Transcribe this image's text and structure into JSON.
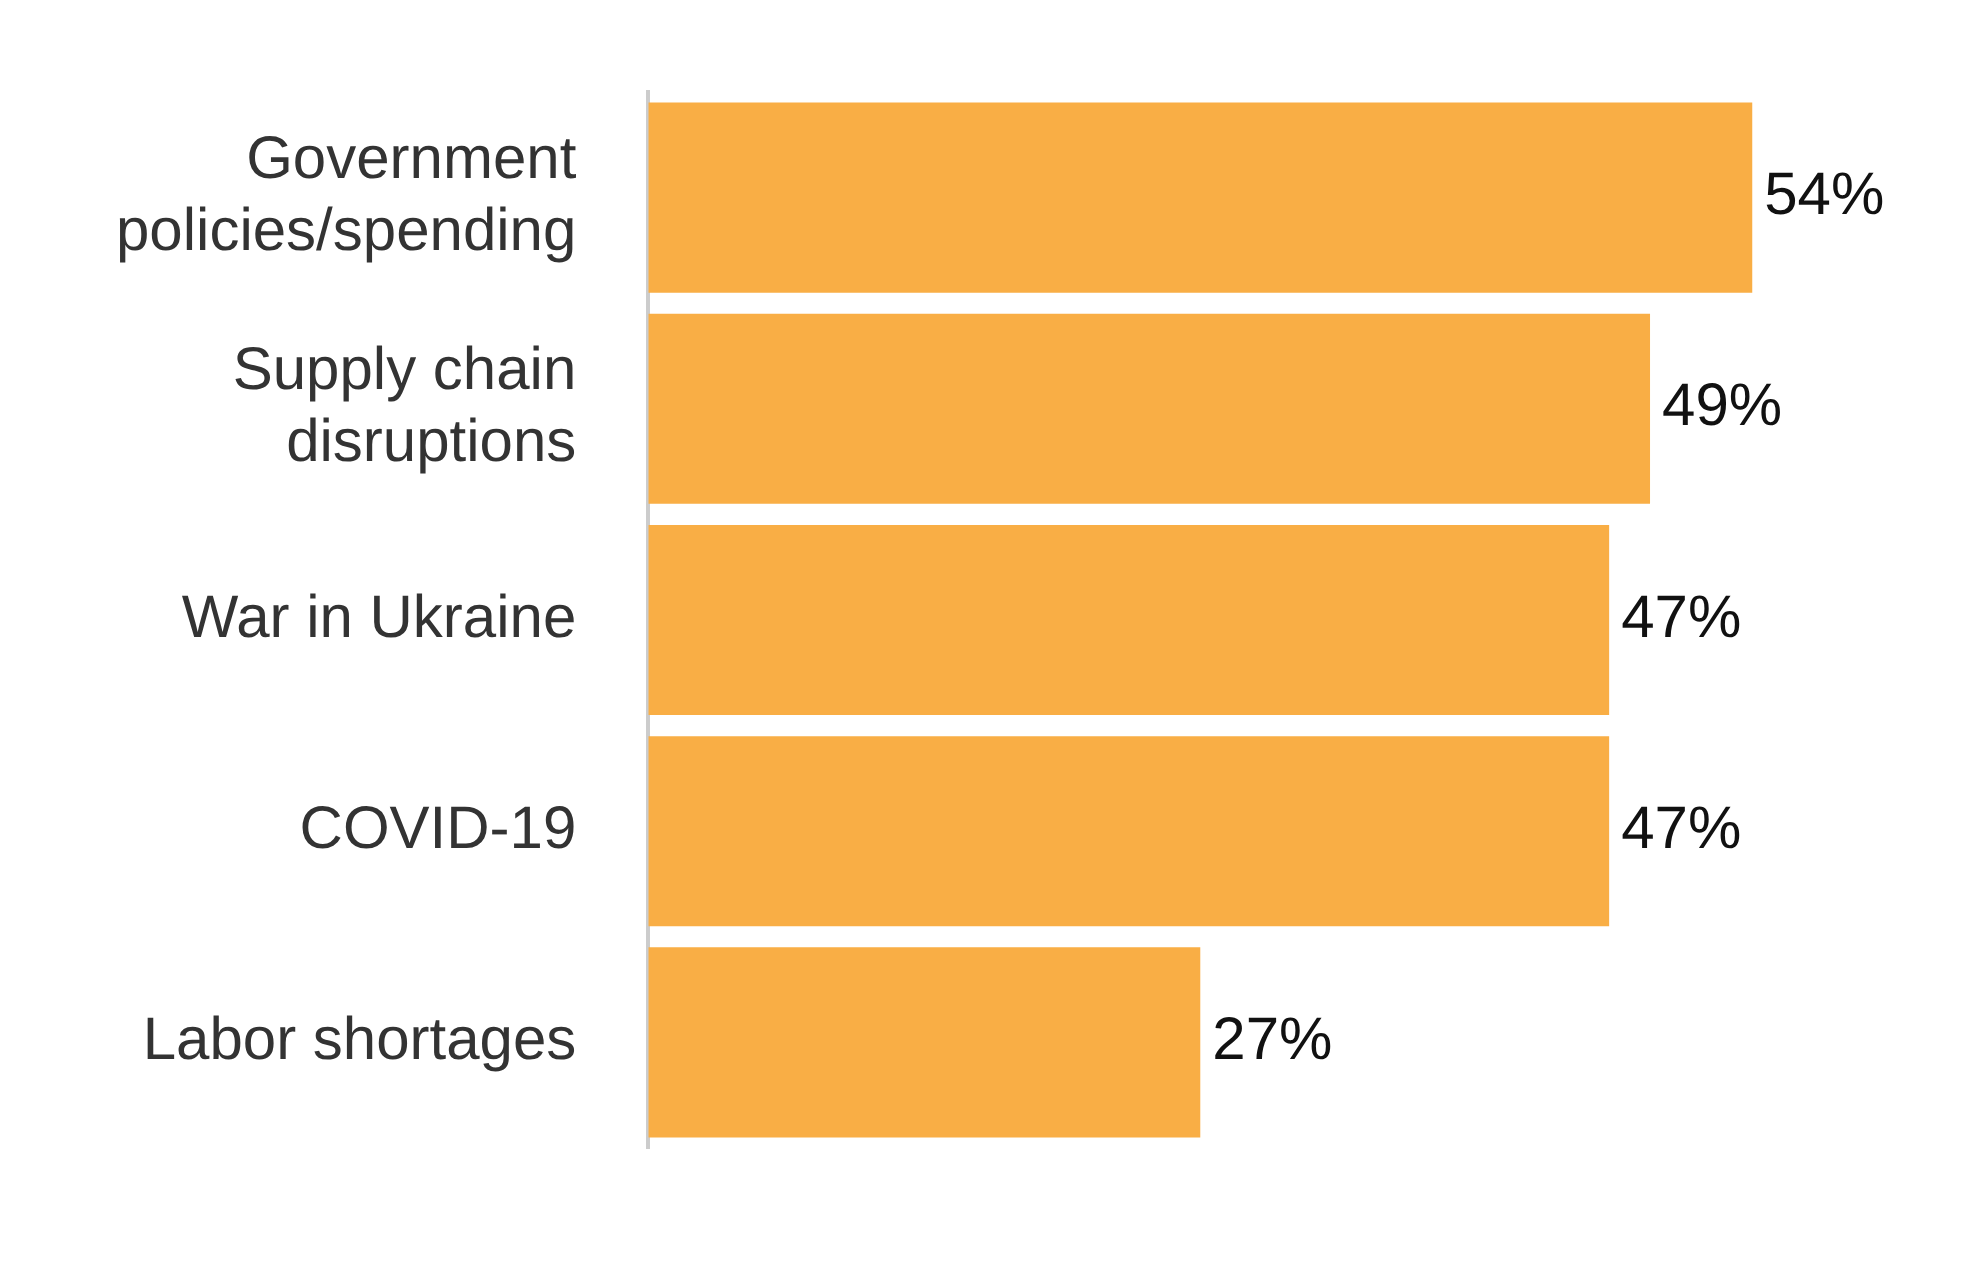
{
  "chart_data": {
    "type": "bar",
    "orientation": "horizontal",
    "categories": [
      "Government policies/spending",
      "Supply chain disruptions",
      "War in Ukraine",
      "COVID-19",
      "Labor shortages"
    ],
    "values": [
      54,
      49,
      47,
      47,
      27
    ],
    "value_labels": [
      "54%",
      "49%",
      "47%",
      "47%",
      "27%"
    ],
    "color": "#f9ae45"
  }
}
